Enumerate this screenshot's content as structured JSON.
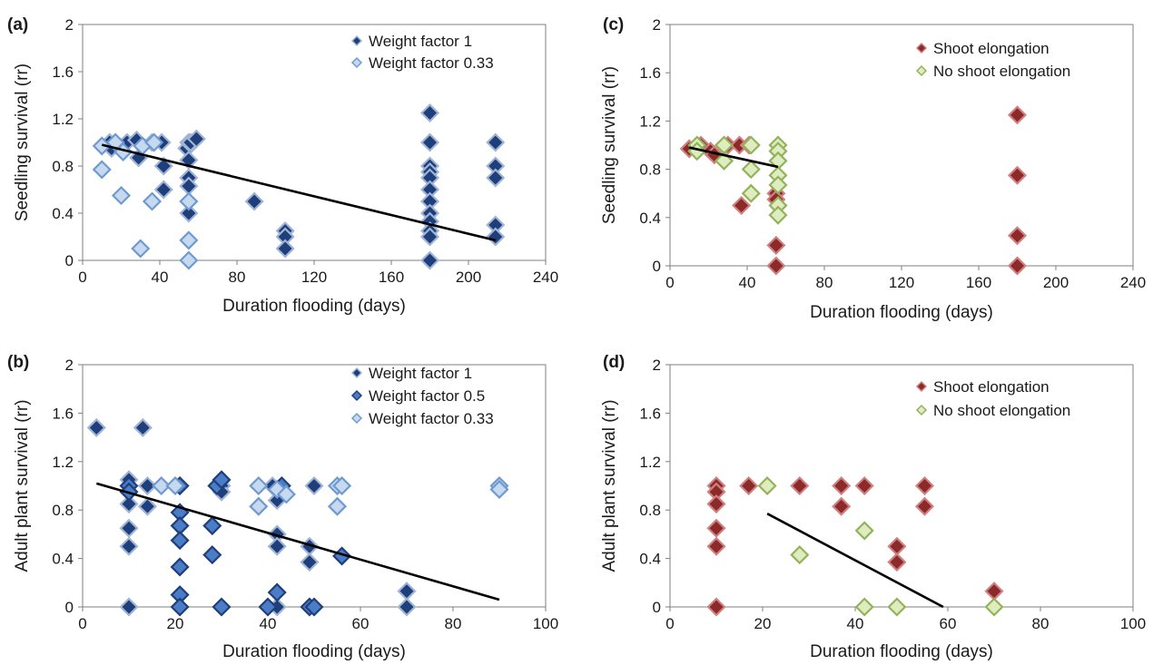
{
  "palette": {
    "dark_blue_fill": "#1f3f7a",
    "dark_blue_stroke": "#9fb4d6",
    "mid_blue_fill": "#4a7cc7",
    "mid_blue_stroke": "#1f3f7a",
    "light_blue_fill": "#c6d9f1",
    "light_blue_stroke": "#6f9ad0",
    "red_fill": "#8c2a2a",
    "red_stroke": "#d08080",
    "green_fill": "#dfecc0",
    "green_stroke": "#93b35a",
    "axis": "#7f7f7f",
    "trendline": "#000000"
  },
  "chart_data": [
    {
      "panel_label": "(a)",
      "type": "scatter",
      "xlabel": "Duration flooding (days)",
      "ylabel": "Seedling survival (rr)",
      "xlim": [
        0,
        240
      ],
      "ylim": [
        0,
        2
      ],
      "x_ticks": [
        "0",
        "40",
        "80",
        "120",
        "160",
        "200",
        "240"
      ],
      "y_ticks": [
        "0",
        "0.4",
        "0.8",
        "1.2",
        "1.6",
        "2"
      ],
      "grid": false,
      "legend_position": "top-right",
      "series": [
        {
          "name": "Weight factor 1",
          "style": "dark_blue",
          "points": [
            [
              14,
              1.0
            ],
            [
              15,
              0.95
            ],
            [
              23,
              1.0
            ],
            [
              28,
              1.02
            ],
            [
              29,
              0.87
            ],
            [
              36,
              1.0
            ],
            [
              41,
              1.0
            ],
            [
              42,
              0.8
            ],
            [
              42,
              0.6
            ],
            [
              54,
              0.95
            ],
            [
              55,
              1.0
            ],
            [
              55,
              0.85
            ],
            [
              55,
              0.7
            ],
            [
              55,
              0.63
            ],
            [
              55,
              0.5
            ],
            [
              55,
              0.4
            ],
            [
              56,
              1.0
            ],
            [
              59,
              1.03
            ],
            [
              89,
              0.5
            ],
            [
              105,
              0.25
            ],
            [
              105,
              0.2
            ],
            [
              105,
              0.1
            ],
            [
              180,
              1.25
            ],
            [
              180,
              1.0
            ],
            [
              180,
              0.8
            ],
            [
              180,
              0.75
            ],
            [
              180,
              0.7
            ],
            [
              180,
              0.6
            ],
            [
              180,
              0.5
            ],
            [
              180,
              0.4
            ],
            [
              180,
              0.33
            ],
            [
              180,
              0.25
            ],
            [
              180,
              0.2
            ],
            [
              180,
              0.0
            ],
            [
              214,
              1.0
            ],
            [
              214,
              0.8
            ],
            [
              214,
              0.7
            ],
            [
              214,
              0.3
            ],
            [
              214,
              0.2
            ]
          ]
        },
        {
          "name": "Weight factor 0.33",
          "style": "light_blue",
          "points": [
            [
              10,
              0.97
            ],
            [
              10,
              0.77
            ],
            [
              17,
              1.0
            ],
            [
              20,
              0.55
            ],
            [
              21,
              0.92
            ],
            [
              30,
              0.1
            ],
            [
              31,
              0.97
            ],
            [
              36,
              0.5
            ],
            [
              37,
              1.0
            ],
            [
              55,
              0.5
            ],
            [
              55,
              0.17
            ],
            [
              55,
              0.0
            ]
          ]
        }
      ],
      "trendline": {
        "x": [
          10,
          214
        ],
        "y": [
          0.98,
          0.17
        ]
      }
    },
    {
      "panel_label": "(b)",
      "type": "scatter",
      "xlabel": "Duration flooding (days)",
      "ylabel": "Adult plant survival (rr)",
      "xlim": [
        0,
        100
      ],
      "ylim": [
        0,
        2
      ],
      "x_ticks": [
        "0",
        "20",
        "40",
        "60",
        "80",
        "100"
      ],
      "y_ticks": [
        "0",
        "0.4",
        "0.8",
        "1.2",
        "1.6",
        "2"
      ],
      "grid": false,
      "legend_position": "top-right",
      "series": [
        {
          "name": "Weight factor 1",
          "style": "dark_blue",
          "points": [
            [
              3,
              1.48
            ],
            [
              10,
              1.05
            ],
            [
              10,
              0.85
            ],
            [
              10,
              0.65
            ],
            [
              10,
              0.5
            ],
            [
              10,
              0.0
            ],
            [
              13,
              1.48
            ],
            [
              14,
              1.0
            ],
            [
              14,
              0.83
            ],
            [
              21,
              1.0
            ],
            [
              30,
              1.0
            ],
            [
              30,
              0.95
            ],
            [
              41,
              1.0
            ],
            [
              42,
              0.88
            ],
            [
              42,
              0.6
            ],
            [
              42,
              0.5
            ],
            [
              42,
              0.0
            ],
            [
              50,
              1.0
            ],
            [
              49,
              0.5
            ],
            [
              49,
              0.37
            ],
            [
              70,
              0.13
            ],
            [
              70,
              0.0
            ]
          ]
        },
        {
          "name": "Weight factor 0.5",
          "style": "mid_blue",
          "points": [
            [
              10,
              1.0
            ],
            [
              10,
              0.95
            ],
            [
              21,
              1.0
            ],
            [
              21,
              0.78
            ],
            [
              21,
              0.67
            ],
            [
              21,
              0.55
            ],
            [
              21,
              0.33
            ],
            [
              21,
              0.1
            ],
            [
              21,
              0.0
            ],
            [
              28,
              0.67
            ],
            [
              28,
              0.43
            ],
            [
              29,
              1.0
            ],
            [
              30,
              1.05
            ],
            [
              30,
              0.0
            ],
            [
              40,
              0.0
            ],
            [
              43,
              1.0
            ],
            [
              42,
              0.12
            ],
            [
              49,
              0.0
            ],
            [
              50,
              0.0
            ],
            [
              56,
              0.42
            ]
          ]
        },
        {
          "name": "Weight factor 0.33",
          "style": "light_blue",
          "points": [
            [
              17,
              1.0
            ],
            [
              20,
              1.0
            ],
            [
              38,
              1.0
            ],
            [
              38,
              0.83
            ],
            [
              42,
              0.97
            ],
            [
              44,
              0.93
            ],
            [
              55,
              1.0
            ],
            [
              56,
              1.0
            ],
            [
              55,
              0.83
            ],
            [
              90,
              1.0
            ],
            [
              90,
              0.97
            ]
          ]
        }
      ],
      "trendline": {
        "x": [
          3,
          90
        ],
        "y": [
          1.02,
          0.06
        ]
      }
    },
    {
      "panel_label": "(c)",
      "type": "scatter",
      "xlabel": "Duration flooding (days)",
      "ylabel": "Seedling survival (rr)",
      "xlim": [
        0,
        240
      ],
      "ylim": [
        0,
        2
      ],
      "x_ticks": [
        "0",
        "40",
        "80",
        "120",
        "160",
        "200",
        "240"
      ],
      "y_ticks": [
        "0",
        "0.4",
        "0.8",
        "1.2",
        "1.6",
        "2"
      ],
      "grid": false,
      "legend_position": "top-right",
      "series": [
        {
          "name": "Shoot elongation",
          "style": "red",
          "points": [
            [
              10,
              0.97
            ],
            [
              16,
              1.0
            ],
            [
              21,
              0.95
            ],
            [
              23,
              0.92
            ],
            [
              30,
              1.0
            ],
            [
              36,
              1.0
            ],
            [
              37,
              0.5
            ],
            [
              41,
              1.0
            ],
            [
              55,
              0.6
            ],
            [
              55,
              0.55
            ],
            [
              55,
              0.17
            ],
            [
              55,
              0.0
            ],
            [
              180,
              1.25
            ],
            [
              180,
              0.75
            ],
            [
              180,
              0.25
            ],
            [
              180,
              0.0
            ]
          ]
        },
        {
          "name": "No shoot elongation",
          "style": "green",
          "points": [
            [
              14,
              1.0
            ],
            [
              14,
              0.95
            ],
            [
              28,
              1.0
            ],
            [
              28,
              0.87
            ],
            [
              42,
              1.0
            ],
            [
              42,
              0.8
            ],
            [
              42,
              0.6
            ],
            [
              56,
              1.0
            ],
            [
              56,
              0.95
            ],
            [
              56,
              0.87
            ],
            [
              56,
              0.75
            ],
            [
              56,
              0.67
            ],
            [
              56,
              0.5
            ],
            [
              56,
              0.42
            ]
          ]
        }
      ],
      "trendline": {
        "x": [
          10,
          56
        ],
        "y": [
          0.98,
          0.82
        ]
      }
    },
    {
      "panel_label": "(d)",
      "type": "scatter",
      "xlabel": "Duration flooding (days)",
      "ylabel": "Adult plant survival (rr)",
      "xlim": [
        0,
        100
      ],
      "ylim": [
        0,
        2
      ],
      "x_ticks": [
        "0",
        "20",
        "40",
        "60",
        "80",
        "100"
      ],
      "y_ticks": [
        "0",
        "0.4",
        "0.8",
        "1.2",
        "1.6",
        "2"
      ],
      "grid": false,
      "legend_position": "top-right",
      "series": [
        {
          "name": "Shoot elongation",
          "style": "red",
          "points": [
            [
              10,
              1.0
            ],
            [
              10,
              0.95
            ],
            [
              10,
              0.85
            ],
            [
              10,
              0.65
            ],
            [
              10,
              0.5
            ],
            [
              10,
              0.0
            ],
            [
              17,
              1.0
            ],
            [
              28,
              1.0
            ],
            [
              37,
              1.0
            ],
            [
              37,
              0.83
            ],
            [
              42,
              1.0
            ],
            [
              49,
              0.5
            ],
            [
              49,
              0.37
            ],
            [
              55,
              1.0
            ],
            [
              55,
              0.83
            ],
            [
              70,
              0.13
            ]
          ]
        },
        {
          "name": "No shoot elongation",
          "style": "green",
          "points": [
            [
              21,
              1.0
            ],
            [
              28,
              0.43
            ],
            [
              42,
              0.63
            ],
            [
              42,
              0.0
            ],
            [
              49,
              0.0
            ],
            [
              70,
              0.0
            ]
          ]
        }
      ],
      "trendline": {
        "x": [
          21,
          59
        ],
        "y": [
          0.77,
          0.0
        ]
      }
    }
  ]
}
